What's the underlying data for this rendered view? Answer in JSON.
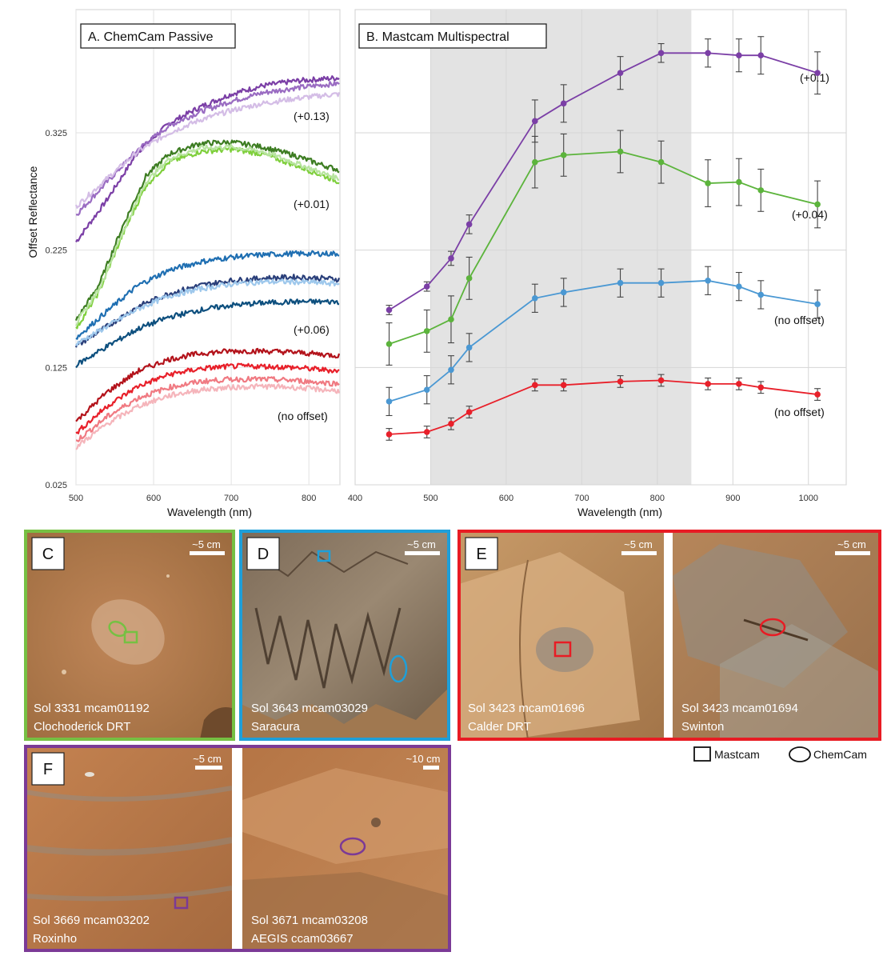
{
  "chart_data": [
    {
      "panel": "A",
      "type": "line",
      "title": "A.  ChemCam Passive",
      "xlabel": "Wavelength (nm)",
      "ylabel": "Offset Reflectance",
      "xlim": [
        500,
        840
      ],
      "ylim": [
        0.025,
        0.43
      ],
      "xticks": [
        500,
        600,
        700,
        800
      ],
      "yticks": [
        0.025,
        0.125,
        0.225,
        0.325
      ],
      "ytick_labels": [
        "0.025",
        "0.125",
        "0.225",
        "0.325"
      ],
      "groups": [
        {
          "offset_label": "(+0.13)",
          "color": "#7b3fa6",
          "series": [
            {
              "color": "#7b3fa6",
              "x": [
                500,
                540,
                580,
                620,
                660,
                700,
                740,
                780,
                820,
                840
              ],
              "y": [
                0.232,
                0.268,
                0.309,
                0.333,
                0.347,
                0.358,
                0.365,
                0.369,
                0.371,
                0.372
              ]
            },
            {
              "color": "#9a6cc2",
              "x": [
                500,
                540,
                580,
                620,
                660,
                700,
                740,
                780,
                820,
                840
              ],
              "y": [
                0.255,
                0.283,
                0.311,
                0.331,
                0.343,
                0.352,
                0.359,
                0.363,
                0.366,
                0.367
              ]
            },
            {
              "color": "#d4bde6",
              "x": [
                500,
                540,
                580,
                620,
                660,
                700,
                740,
                780,
                820,
                840
              ],
              "y": [
                0.262,
                0.286,
                0.309,
                0.325,
                0.336,
                0.344,
                0.35,
                0.354,
                0.357,
                0.358
              ]
            }
          ]
        },
        {
          "offset_label": "(+0.01)",
          "color": "#4a9a2a",
          "series": [
            {
              "color": "#3d7d22",
              "x": [
                500,
                530,
                560,
                590,
                620,
                660,
                700,
                740,
                780,
                820,
                840
              ],
              "y": [
                0.165,
                0.196,
                0.245,
                0.288,
                0.307,
                0.316,
                0.317,
                0.313,
                0.306,
                0.297,
                0.293
              ]
            },
            {
              "color": "#7fcf3c",
              "x": [
                500,
                530,
                560,
                590,
                620,
                660,
                700,
                740,
                780,
                820,
                840
              ],
              "y": [
                0.158,
                0.19,
                0.238,
                0.28,
                0.3,
                0.309,
                0.311,
                0.307,
                0.298,
                0.288,
                0.283
              ]
            },
            {
              "color": "#b8e4a0",
              "x": [
                500,
                530,
                560,
                590,
                620,
                660,
                700,
                740,
                780,
                820,
                840
              ],
              "y": [
                0.162,
                0.192,
                0.24,
                0.283,
                0.303,
                0.312,
                0.313,
                0.309,
                0.3,
                0.29,
                0.286
              ]
            }
          ]
        },
        {
          "offset_label": "(+0.06)",
          "color": "#1f6fb2",
          "series": [
            {
              "color": "#1f6fb2",
              "x": [
                500,
                540,
                580,
                620,
                660,
                700,
                740,
                780,
                820,
                840
              ],
              "y": [
                0.15,
                0.173,
                0.195,
                0.208,
                0.215,
                0.219,
                0.221,
                0.222,
                0.222,
                0.222
              ]
            },
            {
              "color": "#2a3f7a",
              "x": [
                500,
                540,
                580,
                620,
                660,
                700,
                740,
                780,
                820,
                840
              ],
              "y": [
                0.143,
                0.16,
                0.177,
                0.188,
                0.195,
                0.199,
                0.201,
                0.202,
                0.201,
                0.2
              ]
            },
            {
              "color": "#9ec8ec",
              "x": [
                500,
                540,
                580,
                620,
                660,
                700,
                740,
                780,
                820,
                840
              ],
              "y": [
                0.145,
                0.16,
                0.175,
                0.186,
                0.192,
                0.196,
                0.198,
                0.198,
                0.197,
                0.196
              ]
            },
            {
              "color": "#0d4f7e",
              "x": [
                500,
                540,
                580,
                620,
                660,
                700,
                740,
                780,
                820,
                840
              ],
              "y": [
                0.127,
                0.143,
                0.158,
                0.168,
                0.174,
                0.178,
                0.18,
                0.181,
                0.181,
                0.181
              ]
            }
          ]
        },
        {
          "offset_label": "(no offset)",
          "color": "#d7191c",
          "series": [
            {
              "color": "#b3131b",
              "x": [
                500,
                540,
                580,
                620,
                660,
                700,
                740,
                780,
                820,
                840
              ],
              "y": [
                0.079,
                0.104,
                0.122,
                0.132,
                0.137,
                0.139,
                0.139,
                0.138,
                0.136,
                0.135
              ]
            },
            {
              "color": "#e8202a",
              "x": [
                500,
                540,
                580,
                620,
                660,
                700,
                740,
                780,
                820,
                840
              ],
              "y": [
                0.069,
                0.092,
                0.109,
                0.119,
                0.124,
                0.126,
                0.126,
                0.125,
                0.123,
                0.122
              ]
            },
            {
              "color": "#f07a82",
              "x": [
                500,
                540,
                580,
                620,
                660,
                700,
                740,
                780,
                820,
                840
              ],
              "y": [
                0.062,
                0.083,
                0.099,
                0.108,
                0.113,
                0.115,
                0.115,
                0.114,
                0.112,
                0.111
              ]
            },
            {
              "color": "#f5b5bb",
              "x": [
                500,
                540,
                580,
                620,
                660,
                700,
                740,
                780,
                820,
                840
              ],
              "y": [
                0.057,
                0.077,
                0.092,
                0.101,
                0.106,
                0.108,
                0.109,
                0.108,
                0.106,
                0.105
              ]
            }
          ]
        }
      ]
    },
    {
      "panel": "B",
      "type": "line",
      "title": "B.  Mastcam Multispectral",
      "xlabel": "Wavelength (nm)",
      "ylabel": "Offset Reflectance",
      "xlim": [
        400,
        1050
      ],
      "ylim": [
        0.025,
        0.43
      ],
      "xticks": [
        400,
        500,
        600,
        700,
        800,
        900,
        1000
      ],
      "shaded_region": [
        500,
        845
      ],
      "x": [
        445,
        495,
        527,
        551,
        638,
        676,
        751,
        805,
        867,
        908,
        937,
        1012
      ],
      "series": [
        {
          "name": "(+0.1)",
          "color": "#7b3fa6",
          "values": [
            0.174,
            0.194,
            0.218,
            0.247,
            0.335,
            0.35,
            0.376,
            0.393,
            0.393,
            0.391,
            0.391,
            0.376
          ],
          "errors": [
            0.004,
            0.004,
            0.006,
            0.008,
            0.018,
            0.016,
            0.014,
            0.008,
            0.012,
            0.014,
            0.016,
            0.018
          ]
        },
        {
          "name": "(+0.04)",
          "color": "#5cb43c",
          "values": [
            0.145,
            0.156,
            0.166,
            0.201,
            0.3,
            0.306,
            0.309,
            0.3,
            0.282,
            0.283,
            0.276,
            0.264
          ],
          "errors": [
            0.018,
            0.018,
            0.02,
            0.018,
            0.022,
            0.018,
            0.018,
            0.018,
            0.02,
            0.02,
            0.018,
            0.02
          ]
        },
        {
          "name": "(no offset)",
          "color": "#4a98d3",
          "values": [
            0.096,
            0.106,
            0.123,
            0.142,
            0.184,
            0.189,
            0.197,
            0.197,
            0.199,
            0.194,
            0.187,
            0.179
          ],
          "errors": [
            0.012,
            0.012,
            0.012,
            0.012,
            0.012,
            0.012,
            0.012,
            0.012,
            0.012,
            0.012,
            0.012,
            0.012
          ]
        },
        {
          "name": "(no offset)",
          "color": "#e8202a",
          "values": [
            0.068,
            0.07,
            0.077,
            0.087,
            0.11,
            0.11,
            0.113,
            0.114,
            0.111,
            0.111,
            0.108,
            0.102
          ],
          "errors": [
            0.005,
            0.005,
            0.005,
            0.005,
            0.005,
            0.005,
            0.005,
            0.005,
            0.005,
            0.005,
            0.005,
            0.005
          ]
        }
      ]
    }
  ],
  "panels": {
    "C": {
      "letter": "C",
      "border_color": "#76c043",
      "scale": "~5 cm",
      "caption_line1": "Sol 3331 mcam01192",
      "caption_line2": "Clochoderick DRT"
    },
    "D": {
      "letter": "D",
      "border_color": "#1e9fd9",
      "scale": "~5 cm",
      "caption_line1": "Sol 3643 mcam03029",
      "caption_line2": "Saracura"
    },
    "E": {
      "letter": "E",
      "border_color": "#e81c24",
      "left": {
        "scale": "~5 cm",
        "caption_line1": "Sol 3423 mcam01696",
        "caption_line2": "Calder DRT"
      },
      "right": {
        "scale": "~5 cm",
        "caption_line1": "Sol 3423 mcam01694",
        "caption_line2": "Swinton"
      }
    },
    "F": {
      "letter": "F",
      "border_color": "#7b3a96",
      "left": {
        "scale": "~5 cm",
        "caption_line1": "Sol 3669 mcam03202",
        "caption_line2": "Roxinho"
      },
      "right": {
        "scale": "~10 cm",
        "caption_line1": "Sol 3671 mcam03208",
        "caption_line2": "AEGIS ccam03667"
      }
    }
  },
  "legend": {
    "mastcam": "Mastcam",
    "chemcam": "ChemCam"
  },
  "colors": {
    "rock_base": "#b07a4a",
    "rock_light": "#cf9b6a",
    "rock_gray": "#8f8e88",
    "shade": "#e3e3e3"
  }
}
